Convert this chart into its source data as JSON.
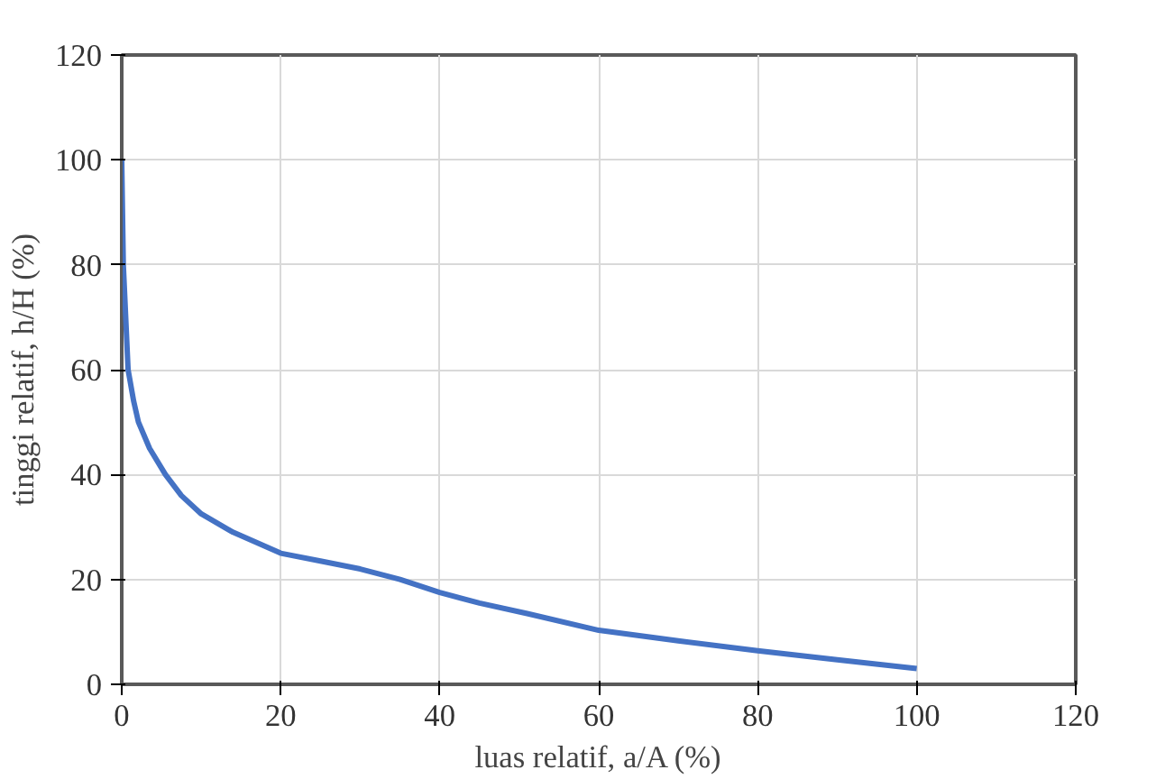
{
  "chart_data": {
    "type": "line",
    "xlabel": "luas relatif, a/A (%)",
    "ylabel": "tinggi relatif, h/H (%)",
    "xlim": [
      0,
      120
    ],
    "ylim": [
      0,
      120
    ],
    "xticks": [
      0,
      20,
      40,
      60,
      80,
      100,
      120
    ],
    "yticks": [
      0,
      20,
      40,
      60,
      80,
      100,
      120
    ],
    "grid": true,
    "marker": "none",
    "line_style": "solid",
    "series": [
      {
        "color": "#4472c4",
        "x": [
          0,
          0.2,
          0.8,
          1.5,
          2.1,
          3.5,
          5.5,
          7.5,
          10,
          14,
          20,
          25,
          30,
          35,
          40,
          45,
          51,
          60,
          70,
          80,
          90,
          100
        ],
        "values": [
          100,
          80,
          60,
          54,
          50,
          45,
          40,
          36,
          32.5,
          29,
          25,
          23.5,
          22,
          20,
          17.5,
          15.5,
          13.5,
          10.3,
          8.3,
          6.4,
          4.7,
          3
        ]
      }
    ]
  }
}
